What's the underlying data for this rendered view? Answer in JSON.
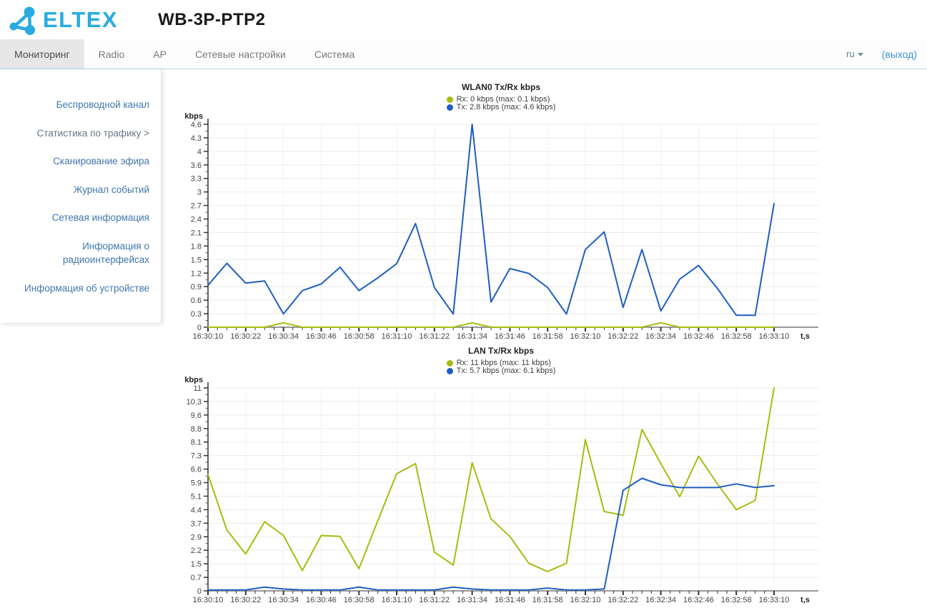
{
  "header": {
    "logo_text": "ELTEX",
    "device_title": "WB-3P-PTP2"
  },
  "nav": {
    "tabs": [
      {
        "label": "Мониторинг",
        "active": true
      },
      {
        "label": "Radio",
        "active": false
      },
      {
        "label": "AP",
        "active": false
      },
      {
        "label": "Сетевые настройки",
        "active": false
      },
      {
        "label": "Система",
        "active": false
      }
    ],
    "language": "ru",
    "logout_label": "(выход)"
  },
  "sidebar": {
    "items": [
      {
        "label": "Беспроводной канал",
        "active": false
      },
      {
        "label": "Статистика по трафику >",
        "active": true
      },
      {
        "label": "Сканирование эфира",
        "active": false
      },
      {
        "label": "Журнал событий",
        "active": false
      },
      {
        "label": "Сетевая информация",
        "active": false
      },
      {
        "label": "Информация о радиоинтерфейсах",
        "active": false
      },
      {
        "label": "Информация об устройстве",
        "active": false
      }
    ]
  },
  "chart_data": [
    {
      "type": "line",
      "title": "WLAN0 Tx/Rx kbps",
      "ylabel": "kbps",
      "xlabel": "t,s",
      "ylim": [
        0,
        4.6
      ],
      "grid": true,
      "legend_position": "top",
      "y_ticks": [
        "0",
        "0.3",
        "0.6",
        "0.9",
        "1.2",
        "1.5",
        "1.8",
        "2.1",
        "2.4",
        "2.7",
        "3",
        "3.3",
        "3.6",
        "4",
        "4.3",
        "4.6"
      ],
      "x": [
        "16:30:10",
        "16:30:16",
        "16:30:22",
        "16:30:28",
        "16:30:34",
        "16:30:40",
        "16:30:46",
        "16:30:52",
        "16:30:58",
        "16:31:04",
        "16:31:10",
        "16:31:16",
        "16:31:22",
        "16:31:28",
        "16:31:34",
        "16:31:40",
        "16:31:46",
        "16:31:52",
        "16:31:58",
        "16:32:04",
        "16:32:10",
        "16:32:16",
        "16:32:22",
        "16:32:28",
        "16:32:34",
        "16:32:40",
        "16:32:46",
        "16:32:52",
        "16:32:58",
        "16:33:04",
        "16:33:10"
      ],
      "x_axis_labels": [
        "16:30:10",
        "16:30:22",
        "16:30:34",
        "16:30:46",
        "16:30:58",
        "16:31:10",
        "16:31:22",
        "16:31:34",
        "16:31:46",
        "16:31:58",
        "16:32:10",
        "16:32:22",
        "16:32:34",
        "16:32:46",
        "16:32:58",
        "16:33:10"
      ],
      "series": [
        {
          "name": "Rx",
          "label": "Rx: 0 kbps (max: 0.1 kbps)",
          "color": "#a8bc0e",
          "values": [
            0,
            0,
            0,
            0,
            0.1,
            0,
            0,
            0,
            0,
            0,
            0,
            0,
            0,
            0,
            0.1,
            0,
            0,
            0,
            0,
            0,
            0,
            0,
            0,
            0,
            0.1,
            0,
            0,
            0,
            0,
            0,
            0
          ]
        },
        {
          "name": "Tx",
          "label": "Tx: 2.8 kbps (max: 4.6 kbps)",
          "color": "#1f5ec2",
          "values": [
            0.95,
            1.45,
            1.0,
            1.05,
            0.3,
            0.83,
            0.98,
            1.36,
            0.83,
            1.12,
            1.44,
            2.35,
            0.9,
            0.3,
            4.6,
            0.57,
            1.33,
            1.22,
            0.9,
            0.3,
            1.76,
            2.16,
            0.45,
            1.76,
            0.37,
            1.09,
            1.4,
            0.88,
            0.27,
            0.27,
            2.8
          ]
        }
      ]
    },
    {
      "type": "line",
      "title": "LAN Tx/Rx kbps",
      "ylabel": "kbps",
      "xlabel": "t,s",
      "ylim": [
        0,
        11
      ],
      "grid": true,
      "legend_position": "top",
      "y_ticks": [
        "0",
        "0.7",
        "1.5",
        "2.2",
        "2.9",
        "3.7",
        "4.4",
        "5.1",
        "5.9",
        "6.6",
        "7.3",
        "8.1",
        "8.8",
        "9.6",
        "10.3",
        "11"
      ],
      "x": [
        "16:30:10",
        "16:30:16",
        "16:30:22",
        "16:30:28",
        "16:30:34",
        "16:30:40",
        "16:30:46",
        "16:30:52",
        "16:30:58",
        "16:31:04",
        "16:31:10",
        "16:31:16",
        "16:31:22",
        "16:31:28",
        "16:31:34",
        "16:31:40",
        "16:31:46",
        "16:31:52",
        "16:31:58",
        "16:32:04",
        "16:32:10",
        "16:32:16",
        "16:32:22",
        "16:32:28",
        "16:32:34",
        "16:32:40",
        "16:32:46",
        "16:32:52",
        "16:32:58",
        "16:33:04",
        "16:33:10"
      ],
      "x_axis_labels": [
        "16:30:10",
        "16:30:22",
        "16:30:34",
        "16:30:46",
        "16:30:58",
        "16:31:10",
        "16:31:22",
        "16:31:34",
        "16:31:46",
        "16:31:58",
        "16:32:10",
        "16:32:22",
        "16:32:34",
        "16:32:46",
        "16:32:58",
        "16:33:10"
      ],
      "series": [
        {
          "name": "Rx",
          "label": "Rx: 11 kbps (max: 11 kbps)",
          "color": "#a8bc0e",
          "values": [
            6.3,
            3.3,
            2.0,
            3.75,
            3.0,
            1.1,
            3.0,
            2.95,
            1.2,
            3.8,
            6.35,
            6.9,
            2.1,
            1.4,
            6.95,
            3.9,
            2.95,
            1.5,
            1.05,
            1.5,
            8.2,
            4.3,
            4.1,
            8.75,
            6.9,
            5.1,
            7.3,
            5.8,
            4.4,
            4.9,
            11
          ]
        },
        {
          "name": "Tx",
          "label": "Tx: 5.7 kbps (max: 6.1 kbps)",
          "color": "#1f5ec2",
          "values": [
            0.05,
            0.05,
            0.05,
            0.2,
            0.1,
            0.05,
            0.05,
            0.05,
            0.2,
            0.05,
            0.05,
            0.05,
            0.05,
            0.2,
            0.1,
            0.05,
            0.05,
            0.05,
            0.15,
            0.05,
            0.05,
            0.1,
            5.45,
            6.1,
            5.75,
            5.6,
            5.6,
            5.6,
            5.8,
            5.6,
            5.7
          ]
        }
      ]
    }
  ]
}
